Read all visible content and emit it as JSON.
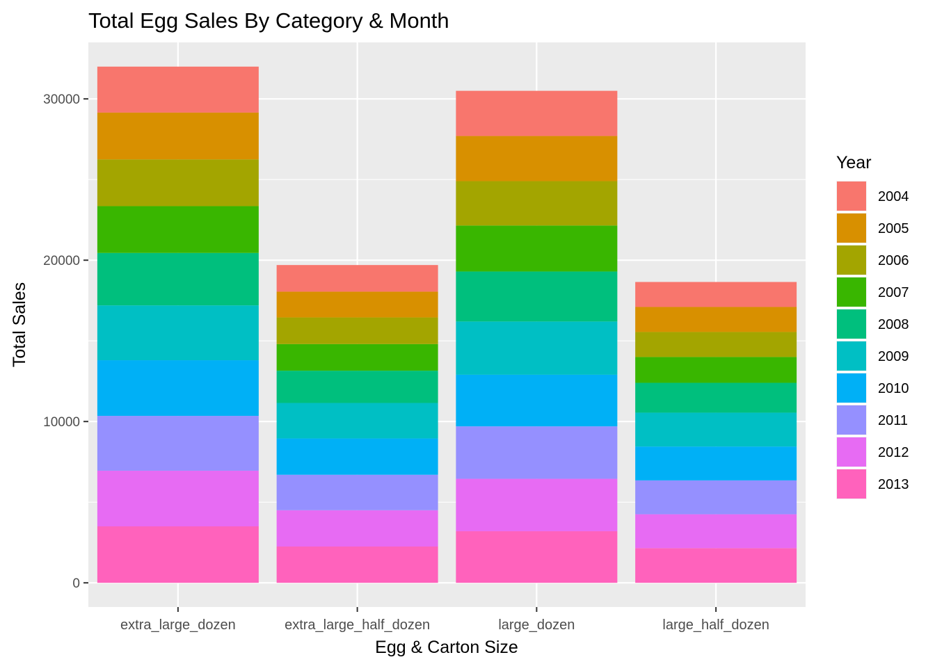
{
  "chart_data": {
    "type": "bar",
    "stacked": true,
    "title": "Total Egg Sales By Category & Month",
    "xlabel": "Egg & Carton Size",
    "ylabel": "Total Sales",
    "ylim": [
      -1500,
      33500
    ],
    "yticks": [
      0,
      10000,
      20000,
      30000
    ],
    "grid": true,
    "legend": {
      "title": "Year",
      "placement": "right"
    },
    "categories": [
      "extra_large_dozen",
      "extra_large_half_dozen",
      "large_dozen",
      "large_half_dozen"
    ],
    "series": [
      {
        "name": "2004",
        "color": "#F8766D",
        "values": [
          2850,
          1650,
          2800,
          1550
        ]
      },
      {
        "name": "2005",
        "color": "#D89000",
        "values": [
          2900,
          1600,
          2800,
          1550
        ]
      },
      {
        "name": "2006",
        "color": "#A3A500",
        "values": [
          2900,
          1650,
          2750,
          1550
        ]
      },
      {
        "name": "2007",
        "color": "#39B600",
        "values": [
          2900,
          1650,
          2850,
          1600
        ]
      },
      {
        "name": "2008",
        "color": "#00BF7D",
        "values": [
          3250,
          2000,
          3100,
          1850
        ]
      },
      {
        "name": "2009",
        "color": "#00BFC4",
        "values": [
          3400,
          2200,
          3300,
          2100
        ]
      },
      {
        "name": "2010",
        "color": "#00B0F6",
        "values": [
          3450,
          2250,
          3200,
          2100
        ]
      },
      {
        "name": "2011",
        "color": "#9590FF",
        "values": [
          3400,
          2200,
          3250,
          2100
        ]
      },
      {
        "name": "2012",
        "color": "#E76BF3",
        "values": [
          3450,
          2250,
          3250,
          2100
        ]
      },
      {
        "name": "2013",
        "color": "#FF62BC",
        "values": [
          3500,
          2250,
          3200,
          2150
        ]
      }
    ]
  }
}
